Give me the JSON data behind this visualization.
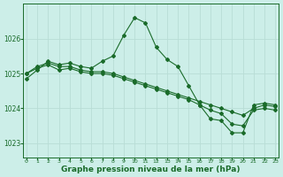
{
  "xlabel": "Graphe pression niveau de la mer (hPa)",
  "background_color": "#cceee8",
  "grid_color": "#b8ddd6",
  "line_color": "#1a6b2a",
  "ylim": [
    1022.6,
    1027.0
  ],
  "yticks": [
    1023,
    1024,
    1025,
    1026
  ],
  "xlim": [
    -0.3,
    23.3
  ],
  "xticks": [
    0,
    1,
    2,
    3,
    4,
    5,
    6,
    7,
    8,
    9,
    10,
    11,
    12,
    13,
    14,
    15,
    16,
    17,
    18,
    19,
    20,
    21,
    22,
    23
  ],
  "line1": [
    1024.85,
    1025.1,
    1025.35,
    1025.25,
    1025.3,
    1025.2,
    1025.15,
    1025.35,
    1025.5,
    1026.1,
    1026.6,
    1026.45,
    1025.75,
    1025.4,
    1025.2,
    1024.65,
    1024.1,
    1023.7,
    1023.65,
    1023.3,
    1023.3,
    1024.1,
    1024.15,
    1024.1
  ],
  "line2": [
    1025.0,
    1025.2,
    1025.3,
    1025.2,
    1025.2,
    1025.1,
    1025.05,
    1025.05,
    1025.0,
    1024.9,
    1024.8,
    1024.7,
    1024.6,
    1024.5,
    1024.4,
    1024.3,
    1024.2,
    1024.1,
    1024.0,
    1023.9,
    1023.8,
    1024.0,
    1024.1,
    1024.05
  ],
  "line3": [
    1025.0,
    1025.15,
    1025.25,
    1025.1,
    1025.15,
    1025.05,
    1025.0,
    1025.0,
    1024.95,
    1024.85,
    1024.75,
    1024.65,
    1024.55,
    1024.45,
    1024.35,
    1024.25,
    1024.1,
    1023.95,
    1023.85,
    1023.55,
    1023.5,
    1023.95,
    1024.0,
    1023.95
  ]
}
